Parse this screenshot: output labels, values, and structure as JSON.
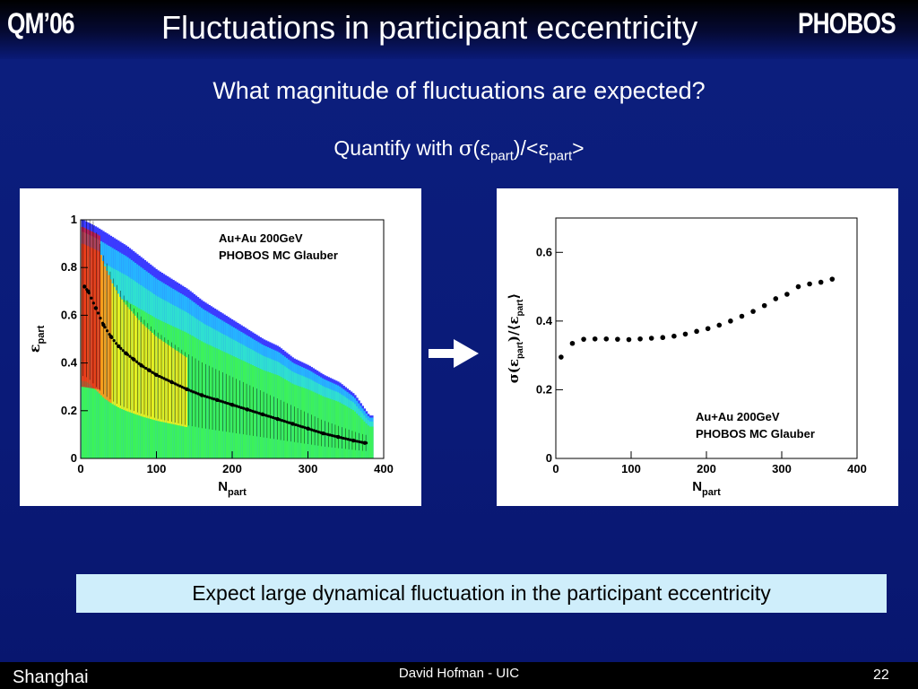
{
  "header": {
    "left_tag": "QM’06",
    "title": "Fluctuations in participant eccentricity",
    "right_tag": "PHOBOS"
  },
  "question": "What magnitude of fluctuations are expected?",
  "quantify": {
    "prefix": "Quantify with ",
    "sigma": "σ",
    "open": "(",
    "epsilon": "ε",
    "sub": "part",
    "mid": ")/<",
    "close": ">"
  },
  "conclusion": "Expect large dynamical fluctuation in the participant eccentricity",
  "footer": {
    "location": "Shanghai",
    "author": "David Hofman - UIC",
    "page": "22"
  },
  "chart_data": [
    {
      "type": "heatmap",
      "annotation": [
        "Au+Au 200GeV",
        "PHOBOS MC Glauber"
      ],
      "xlabel": "N",
      "xlabel_sub": "part",
      "ylabel": "ε",
      "ylabel_sub": "part",
      "xlim": [
        0,
        400
      ],
      "ylim": [
        0,
        1
      ],
      "xticks": [
        "0",
        "100",
        "200",
        "300",
        "400"
      ],
      "yticks": [
        "0",
        "0.2",
        "0.4",
        "0.6",
        "0.8",
        "1"
      ],
      "band_upper_edge": {
        "x": [
          2,
          20,
          40,
          60,
          80,
          100,
          120,
          140,
          160,
          180,
          200,
          220,
          240,
          260,
          280,
          300,
          320,
          340,
          360,
          380
        ],
        "y": [
          1.0,
          0.97,
          0.93,
          0.89,
          0.84,
          0.79,
          0.75,
          0.71,
          0.66,
          0.62,
          0.58,
          0.54,
          0.5,
          0.47,
          0.42,
          0.39,
          0.35,
          0.32,
          0.27,
          0.18
        ]
      },
      "mean_profile": {
        "x": [
          5,
          10,
          20,
          30,
          40,
          50,
          60,
          70,
          80,
          90,
          100,
          120,
          140,
          160,
          180,
          200,
          220,
          240,
          260,
          280,
          300,
          320,
          340,
          360,
          375
        ],
        "y": [
          0.72,
          0.7,
          0.63,
          0.56,
          0.51,
          0.47,
          0.44,
          0.415,
          0.39,
          0.37,
          0.35,
          0.32,
          0.29,
          0.265,
          0.245,
          0.225,
          0.205,
          0.185,
          0.165,
          0.145,
          0.125,
          0.105,
          0.09,
          0.075,
          0.065
        ]
      }
    },
    {
      "type": "scatter",
      "annotation": [
        "Au+Au 200GeV",
        "PHOBOS MC Glauber"
      ],
      "xlabel": "N",
      "xlabel_sub": "part",
      "ylabel": "σ(ε",
      "ylabel_sub": "part",
      "ylabel_mid": ")/⟨ε",
      "ylabel_end": "⟩",
      "xlim": [
        0,
        400
      ],
      "ylim": [
        0,
        0.7
      ],
      "xticks": [
        "0",
        "100",
        "200",
        "300",
        "400"
      ],
      "yticks": [
        "0",
        "0.2",
        "0.4",
        "0.6"
      ],
      "x": [
        7,
        22,
        37,
        52,
        67,
        82,
        97,
        112,
        127,
        142,
        157,
        172,
        187,
        202,
        217,
        232,
        247,
        262,
        277,
        292,
        307,
        322,
        337,
        352,
        367
      ],
      "y": [
        0.295,
        0.335,
        0.347,
        0.348,
        0.348,
        0.347,
        0.346,
        0.348,
        0.35,
        0.352,
        0.356,
        0.362,
        0.37,
        0.378,
        0.388,
        0.4,
        0.414,
        0.428,
        0.445,
        0.465,
        0.478,
        0.5,
        0.508,
        0.513,
        0.522
      ]
    }
  ]
}
